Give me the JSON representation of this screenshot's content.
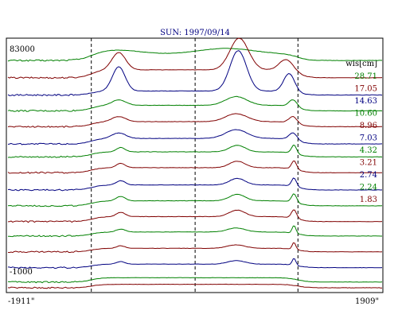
{
  "chart_data": {
    "type": "line",
    "title": "SUN: 1997/09/14",
    "xlabel": "",
    "ylabel": "",
    "x_tick_labels": [
      "-1911\"",
      "1909\""
    ],
    "xlim": [
      -1911,
      1909
    ],
    "ylim": [
      -1000,
      83000
    ],
    "y_tick_labels": [
      "83000",
      "-1000"
    ],
    "legend_title": "wls[cm]",
    "legend_position": "right",
    "grid": false,
    "vertical_markers_x": [
      -1060,
      0,
      1050
    ],
    "series": [
      {
        "name": "28.71",
        "color": "#008000",
        "baseline": 78000,
        "amplitude": 4000,
        "profile": "broad"
      },
      {
        "name": "17.05",
        "color": "#800000",
        "baseline": 72000,
        "amplitude": 11000,
        "profile": "limb"
      },
      {
        "name": "14.63",
        "color": "#000080",
        "baseline": 66000,
        "amplitude": 14000,
        "profile": "limb-strong"
      },
      {
        "name": "10.60",
        "color": "#008000",
        "baseline": 60500,
        "amplitude": 5500,
        "profile": "medium"
      },
      {
        "name": "8.96",
        "color": "#800000",
        "baseline": 55000,
        "amplitude": 5000,
        "profile": "medium"
      },
      {
        "name": "7.03",
        "color": "#000080",
        "baseline": 49000,
        "amplitude": 5500,
        "profile": "medium"
      },
      {
        "name": "4.32",
        "color": "#008000",
        "baseline": 44500,
        "amplitude": 5000,
        "profile": "narrow"
      },
      {
        "name": "3.21",
        "color": "#800000",
        "baseline": 39000,
        "amplitude": 5000,
        "profile": "narrow"
      },
      {
        "name": "2.74",
        "color": "#000080",
        "baseline": 33000,
        "amplitude": 5000,
        "profile": "narrow"
      },
      {
        "name": "2.24",
        "color": "#008000",
        "baseline": 27500,
        "amplitude": 5000,
        "profile": "narrow"
      },
      {
        "name": "1.83",
        "color": "#800000",
        "baseline": 22000,
        "amplitude": 5000,
        "profile": "narrow"
      },
      {
        "name": "",
        "color": "#008000",
        "baseline": 17000,
        "amplitude": 4000,
        "profile": "weak"
      },
      {
        "name": "",
        "color": "#800000",
        "baseline": 11500,
        "amplitude": 3500,
        "profile": "weak"
      },
      {
        "name": "",
        "color": "#000080",
        "baseline": 6000,
        "amplitude": 3500,
        "profile": "weak"
      },
      {
        "name": "",
        "color": "#008000",
        "baseline": 1000,
        "amplitude": 2500,
        "profile": "flat"
      },
      {
        "name": "",
        "color": "#800000",
        "baseline": -1000,
        "amplitude": 2000,
        "profile": "flat"
      }
    ]
  }
}
